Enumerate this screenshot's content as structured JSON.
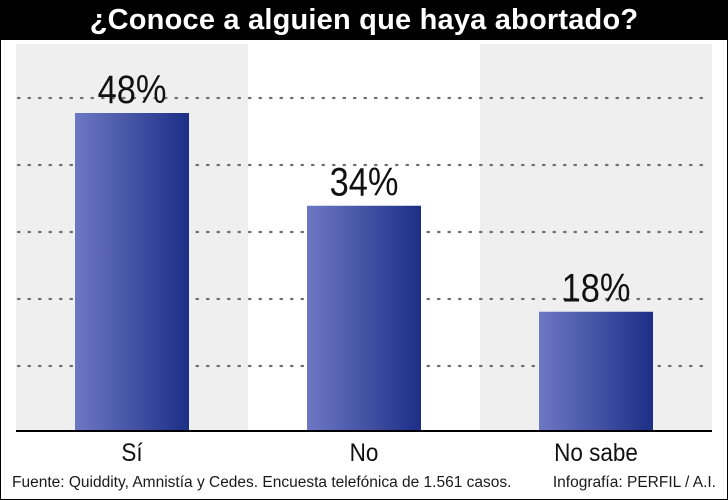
{
  "title": "¿Conoce a alguien que haya abortado?",
  "chart_data": {
    "type": "bar",
    "categories": [
      "Sí",
      "No",
      "No sabe"
    ],
    "values": [
      48,
      34,
      18
    ],
    "value_labels": [
      "48%",
      "34%",
      "18%"
    ],
    "ylim": [
      0,
      48
    ],
    "grid": true,
    "colors": {
      "bar_light": "#6d78c4",
      "bar_dark": "#1c2e86",
      "panel_shade": "#efefef",
      "grid": "#6f6f6f"
    }
  },
  "footer": {
    "source": "Fuente: Quiddity, Amnistía y Cedes. Encuesta telefónica de 1.561 casos.",
    "credit": "Infografía: PERFIL / A.I."
  }
}
